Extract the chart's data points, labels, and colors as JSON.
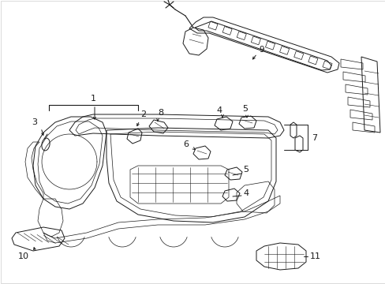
{
  "background_color": "#ffffff",
  "line_color": "#1a1a1a",
  "fig_width": 4.89,
  "fig_height": 3.6,
  "dpi": 100,
  "font_size": 7.5,
  "title_font_size": 7,
  "border_color": "#cccccc"
}
